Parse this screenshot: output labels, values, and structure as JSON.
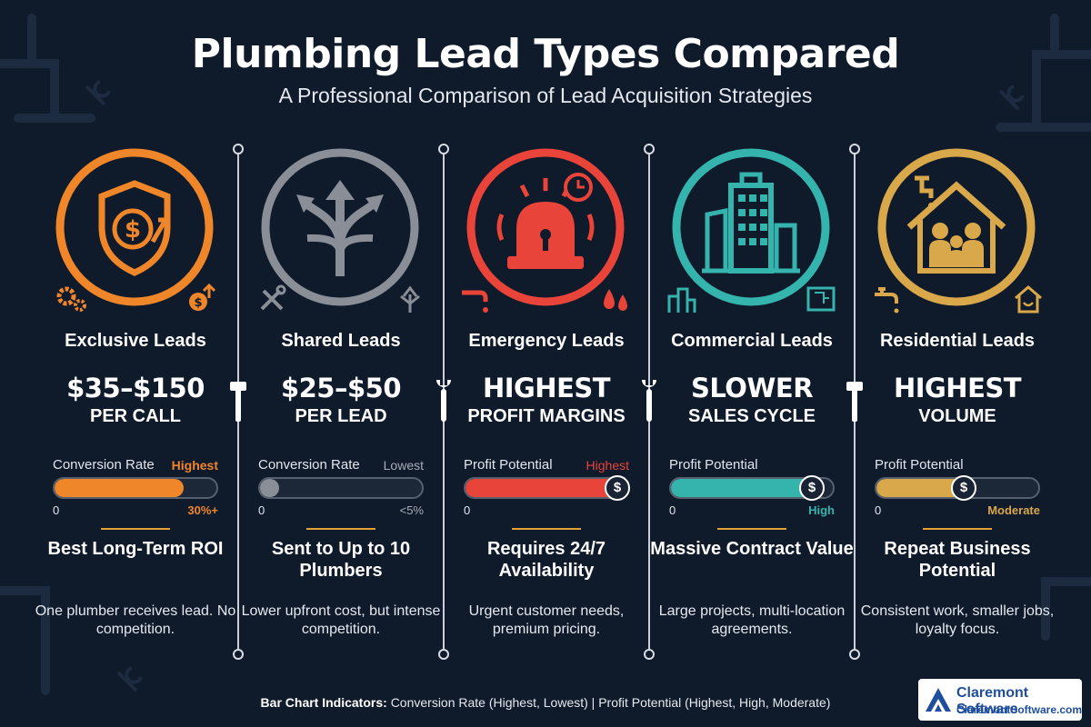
{
  "header": {
    "title": "Plumbing Lead Types Compared",
    "subtitle": "A Professional Comparison of Lead Acquisition Strategies"
  },
  "columns": [
    {
      "heading": "Exclusive Leads",
      "big_line1": "$35–$150",
      "big_line2": "PER CALL",
      "meter": {
        "label": "Conversion Rate",
        "tag": "Highest",
        "min_label": "0",
        "max_label": "30%+",
        "level": 0.8,
        "show_coin": false
      },
      "sub_head": "Best Long-Term ROI",
      "description": "One plumber receives lead. No competition.",
      "icon": "shield-dollar-icon",
      "color": "#f0862a"
    },
    {
      "heading": "Shared Leads",
      "big_line1": "$25–$50",
      "big_line2": "PER LEAD",
      "meter": {
        "label": "Conversion Rate",
        "tag": "Lowest",
        "min_label": "0",
        "max_label": "<5%",
        "level": 0.12,
        "show_coin": false
      },
      "sub_head": "Sent to Up to 10 Plumbers",
      "description": "Lower upfront cost, but intense competition.",
      "icon": "split-arrows-icon",
      "color": "#8a8f97"
    },
    {
      "heading": "Emergency Leads",
      "big_line1": "HIGHEST",
      "big_line2": "PROFIT MARGINS",
      "meter": {
        "label": "Profit Potential",
        "tag": "Highest",
        "min_label": "0",
        "max_label": "",
        "level": 0.95,
        "show_coin": true
      },
      "sub_head": "Requires 24/7 Availability",
      "description": "Urgent customer needs, premium pricing.",
      "icon": "siren-icon",
      "color": "#e8443a"
    },
    {
      "heading": "Commercial Leads",
      "big_line1": "SLOWER",
      "big_line2": "SALES CYCLE",
      "meter": {
        "label": "Profit Potential",
        "tag": "",
        "min_label": "0",
        "max_label": "High",
        "level": 0.88,
        "show_coin": true
      },
      "sub_head": "Massive Contract Value",
      "description": "Large projects, multi-location agreements.",
      "icon": "office-building-icon",
      "color": "#35b3ad"
    },
    {
      "heading": "Residential Leads",
      "big_line1": "HIGHEST",
      "big_line2": "VOLUME",
      "meter": {
        "label": "Profit Potential",
        "tag": "",
        "min_label": "0",
        "max_label": "Moderate",
        "level": 0.55,
        "show_coin": true
      },
      "sub_head": "Repeat Business Potential",
      "description": "Consistent work, smaller jobs, loyalty focus.",
      "icon": "house-family-icon",
      "color": "#d9a84a"
    }
  ],
  "footer": {
    "legend_label": "Bar Chart Indicators:",
    "legend_text": "Conversion Rate (Highest, Lowest) | Profit Potential (Highest, High, Moderate)"
  },
  "brand": {
    "name": "Claremont Software",
    "url": "ClaremontSoftware.com"
  },
  "coin_symbol": "$"
}
